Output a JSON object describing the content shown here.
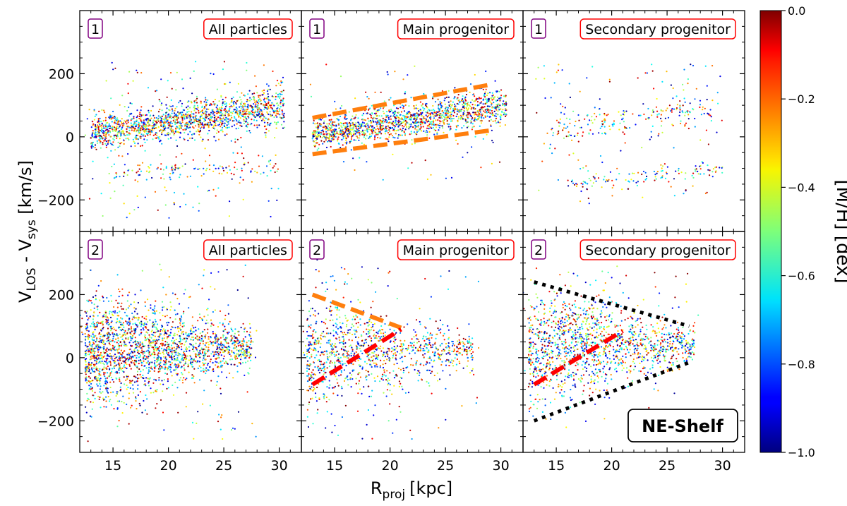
{
  "chart_data": {
    "type": "scatter",
    "title": "",
    "xlabel": "R_proj [kpc]",
    "xlabel_main": "R",
    "xlabel_sub": "proj",
    "xlabel_unit": "[kpc]",
    "ylabel": "V_LOS - V_sys [km/s]",
    "ylabel_v1": "V",
    "ylabel_s1": "LOS",
    "ylabel_mid": " - V",
    "ylabel_s2": "sys",
    "ylabel_unit": " [km/s]",
    "xlim": [
      12,
      32
    ],
    "ylim": [
      -300,
      400
    ],
    "xticks": [
      15,
      20,
      25,
      30
    ],
    "xtick_labels": [
      "15",
      "20",
      "25",
      "30"
    ],
    "yticks": [
      -200,
      0,
      200
    ],
    "ytick_labels": [
      "−200",
      "0",
      "200"
    ],
    "colorbar": {
      "label": "[M/H] [dex]",
      "range": [
        -1.0,
        0.0
      ],
      "ticks": [
        0.0,
        -0.2,
        -0.4,
        -0.6,
        -0.8,
        -1.0
      ],
      "tick_labels": [
        "0.0",
        "−0.2",
        "−0.4",
        "−0.6",
        "−0.8",
        "−1.0"
      ],
      "colormap": "jet"
    },
    "annotation": "NE-Shelf",
    "panels": [
      {
        "row": 1,
        "col": 1,
        "number": "1",
        "label": "All particles",
        "components": [
          {
            "kind": "band",
            "x0": 13,
            "x1": 30.5,
            "c0": 10,
            "c1": 100,
            "hw0": 45,
            "hw1": 55,
            "n": 1500
          },
          {
            "kind": "band",
            "x0": 15,
            "x1": 30,
            "c0": -115,
            "c1": -95,
            "hw0": 25,
            "hw1": 25,
            "n": 110
          },
          {
            "kind": "uniform",
            "x0": 12.5,
            "x1": 30,
            "y0": -260,
            "y1": 240,
            "n": 200
          }
        ],
        "lines": []
      },
      {
        "row": 1,
        "col": 2,
        "number": "1",
        "label": "Main progenitor",
        "components": [
          {
            "kind": "band",
            "x0": 13,
            "x1": 30.5,
            "c0": 10,
            "c1": 100,
            "hw0": 45,
            "hw1": 55,
            "n": 1500
          },
          {
            "kind": "uniform",
            "x0": 12.5,
            "x1": 30,
            "y0": -150,
            "y1": 230,
            "n": 70
          }
        ],
        "lines": [
          {
            "x": [
              13,
              29
            ],
            "y": [
              60,
              165
            ],
            "color": "#ff7f0e",
            "style": "dashed"
          },
          {
            "x": [
              13,
              29
            ],
            "y": [
              -55,
              20
            ],
            "color": "#ff7f0e",
            "style": "dashed"
          }
        ]
      },
      {
        "row": 1,
        "col": 3,
        "number": "1",
        "label": "Secondary progenitor",
        "components": [
          {
            "kind": "band",
            "x0": 14,
            "x1": 29,
            "c0": 20,
            "c1": 80,
            "hw0": 45,
            "hw1": 50,
            "n": 180
          },
          {
            "kind": "band",
            "x0": 16,
            "x1": 30,
            "c0": -150,
            "c1": -100,
            "hw0": 25,
            "hw1": 25,
            "n": 110
          },
          {
            "kind": "uniform",
            "x0": 13,
            "x1": 30,
            "y0": -220,
            "y1": 230,
            "n": 140
          }
        ],
        "lines": []
      },
      {
        "row": 2,
        "col": 1,
        "number": "2",
        "label": "All particles",
        "components": [
          {
            "kind": "wedge",
            "x0": 12.5,
            "x1": 27.5,
            "ctop0": 150,
            "ctop1": 90,
            "cbot0": -150,
            "cbot1": -20,
            "n": 1700
          },
          {
            "kind": "blob",
            "cx": 17,
            "cy": 80,
            "sx": 2.5,
            "sy": 60,
            "n": 350
          },
          {
            "kind": "uniform",
            "x0": 12.5,
            "x1": 28,
            "y0": -260,
            "y1": 300,
            "n": 150
          }
        ],
        "lines": []
      },
      {
        "row": 2,
        "col": 2,
        "number": "2",
        "label": "Main progenitor",
        "components": [
          {
            "kind": "wedge",
            "x0": 12.5,
            "x1": 27.5,
            "ctop0": 140,
            "ctop1": 80,
            "cbot0": -160,
            "cbot1": -20,
            "n": 900
          },
          {
            "kind": "blob",
            "cx": 16,
            "cy": 60,
            "sx": 2,
            "sy": 50,
            "n": 150
          },
          {
            "kind": "uniform",
            "x0": 12.5,
            "x1": 28,
            "y0": -260,
            "y1": 290,
            "n": 120
          }
        ],
        "lines": [
          {
            "x": [
              13,
              21
            ],
            "y": [
              200,
              95
            ],
            "color": "#ff7f0e",
            "style": "dashed"
          },
          {
            "x": [
              13,
              21
            ],
            "y": [
              -85,
              90
            ],
            "color": "#ff0000",
            "style": "dashed"
          }
        ]
      },
      {
        "row": 2,
        "col": 3,
        "number": "2",
        "label": "Secondary progenitor",
        "components": [
          {
            "kind": "wedge",
            "x0": 12.5,
            "x1": 27.5,
            "ctop0": 150,
            "ctop1": 85,
            "cbot0": -140,
            "cbot1": -10,
            "n": 1100
          },
          {
            "kind": "blob",
            "cx": 17,
            "cy": 110,
            "sx": 2.5,
            "sy": 55,
            "n": 300
          },
          {
            "kind": "uniform",
            "x0": 12.5,
            "x1": 28,
            "y0": -230,
            "y1": 290,
            "n": 100
          }
        ],
        "lines": [
          {
            "x": [
              13,
              27
            ],
            "y": [
              240,
              100
            ],
            "color": "#000000",
            "style": "dotted"
          },
          {
            "x": [
              13,
              27
            ],
            "y": [
              -200,
              -15
            ],
            "color": "#000000",
            "style": "dotted"
          },
          {
            "x": [
              13,
              21
            ],
            "y": [
              -85,
              85
            ],
            "color": "#ff0000",
            "style": "dashed"
          }
        ]
      }
    ]
  }
}
